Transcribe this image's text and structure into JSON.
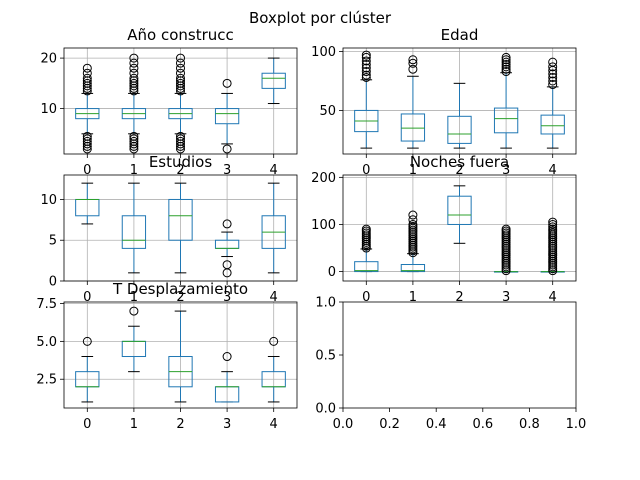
{
  "suptitle": "Boxplot por clúster",
  "chart_data": [
    {
      "type": "boxplot",
      "title": "Año construcc",
      "categories": [
        "0",
        "1",
        "2",
        "3",
        "4"
      ],
      "ylim": [
        1,
        22
      ],
      "yticks": [
        10,
        20
      ],
      "grid": true,
      "boxes": [
        {
          "whislo": 5,
          "q1": 8,
          "median": 9,
          "q3": 10,
          "whishi": 13,
          "fliers": [
            2,
            2.5,
            3,
            3.5,
            4,
            4.5,
            13.5,
            14,
            14.5,
            15,
            15.5,
            16,
            17,
            18
          ]
        },
        {
          "whislo": 5,
          "q1": 8,
          "median": 9,
          "q3": 10,
          "whishi": 13,
          "fliers": [
            2,
            2.5,
            3,
            3.5,
            4,
            4.5,
            13.5,
            14,
            14.5,
            15,
            15.5,
            16,
            17,
            18,
            19,
            20
          ]
        },
        {
          "whislo": 5,
          "q1": 8,
          "median": 9,
          "q3": 10,
          "whishi": 13,
          "fliers": [
            2,
            2.5,
            3,
            3.5,
            4,
            4.5,
            13.5,
            14,
            14.5,
            15,
            15.5,
            16,
            17,
            18,
            19,
            20
          ]
        },
        {
          "whislo": 3,
          "q1": 7,
          "median": 9,
          "q3": 10,
          "whishi": 13,
          "fliers": [
            2,
            15
          ]
        },
        {
          "whislo": 11,
          "q1": 14,
          "median": 16,
          "q3": 17,
          "whishi": 20,
          "fliers": []
        }
      ]
    },
    {
      "type": "boxplot",
      "title": "Edad",
      "categories": [
        "0",
        "1",
        "2",
        "3",
        "4"
      ],
      "ylim": [
        13,
        103
      ],
      "yticks": [
        50,
        100
      ],
      "grid": true,
      "boxes": [
        {
          "whislo": 18,
          "q1": 32,
          "median": 41,
          "q3": 50,
          "whishi": 76,
          "fliers": [
            78,
            80,
            83,
            86,
            89,
            92,
            95,
            97
          ]
        },
        {
          "whislo": 18,
          "q1": 24,
          "median": 35,
          "q3": 47,
          "whishi": 79,
          "fliers": [
            85,
            90,
            93
          ]
        },
        {
          "whislo": 18,
          "q1": 22,
          "median": 30,
          "q3": 45,
          "whishi": 73,
          "fliers": []
        },
        {
          "whislo": 18,
          "q1": 31,
          "median": 43,
          "q3": 52,
          "whishi": 82,
          "fliers": [
            83,
            85,
            87,
            89,
            91,
            93,
            95
          ]
        },
        {
          "whislo": 18,
          "q1": 30,
          "median": 37,
          "q3": 46,
          "whishi": 70,
          "fliers": [
            72,
            75,
            78,
            81,
            84,
            87,
            91
          ]
        }
      ]
    },
    {
      "type": "boxplot",
      "title": "Estudios",
      "categories": [
        "0",
        "1",
        "2",
        "3",
        "4"
      ],
      "ylim": [
        0,
        13
      ],
      "yticks": [
        0,
        5,
        10
      ],
      "grid": true,
      "boxes": [
        {
          "whislo": 7,
          "q1": 8,
          "median": 10,
          "q3": 10,
          "whishi": 12,
          "fliers": []
        },
        {
          "whislo": 1,
          "q1": 4,
          "median": 5,
          "q3": 8,
          "whishi": 12,
          "fliers": []
        },
        {
          "whislo": 1,
          "q1": 5,
          "median": 8,
          "q3": 10,
          "whishi": 12,
          "fliers": []
        },
        {
          "whislo": 3,
          "q1": 4,
          "median": 4,
          "q3": 5,
          "whishi": 6,
          "fliers": [
            1,
            2,
            7
          ]
        },
        {
          "whislo": 1,
          "q1": 4,
          "median": 6,
          "q3": 8,
          "whishi": 12,
          "fliers": []
        }
      ]
    },
    {
      "type": "boxplot",
      "title": "Noches fuera",
      "categories": [
        "0",
        "1",
        "2",
        "3",
        "4"
      ],
      "ylim": [
        -20,
        205
      ],
      "yticks": [
        0,
        100,
        200
      ],
      "grid": true,
      "boxes": [
        {
          "whislo": 0,
          "q1": 0,
          "median": 2,
          "q3": 21,
          "whishi": 48,
          "fliers": [
            50,
            54,
            58,
            62,
            66,
            70,
            74,
            78,
            82,
            86,
            90
          ]
        },
        {
          "whislo": 0,
          "q1": 0,
          "median": 2,
          "q3": 15,
          "whishi": 38,
          "fliers": [
            40,
            44,
            48,
            52,
            56,
            60,
            64,
            68,
            72,
            76,
            80,
            84,
            88,
            92,
            96,
            100,
            110,
            120
          ]
        },
        {
          "whislo": 60,
          "q1": 100,
          "median": 120,
          "q3": 160,
          "whishi": 182,
          "fliers": []
        },
        {
          "whislo": 0,
          "q1": 0,
          "median": 0,
          "q3": 0,
          "whishi": 0,
          "fliers": [
            2,
            6,
            10,
            14,
            18,
            22,
            26,
            30,
            34,
            38,
            42,
            46,
            50,
            54,
            58,
            62,
            66,
            70,
            74,
            78,
            82,
            86,
            90
          ]
        },
        {
          "whislo": 0,
          "q1": 0,
          "median": 0,
          "q3": 0,
          "whishi": 0,
          "fliers": [
            2,
            6,
            10,
            14,
            18,
            22,
            26,
            30,
            34,
            38,
            42,
            46,
            50,
            54,
            58,
            62,
            66,
            70,
            74,
            78,
            82,
            86,
            90,
            95,
            100,
            105
          ]
        }
      ]
    },
    {
      "type": "boxplot",
      "title": "T Desplazamiento",
      "categories": [
        "0",
        "1",
        "2",
        "3",
        "4"
      ],
      "ylim": [
        0.6,
        7.6
      ],
      "yticks": [
        2.5,
        5.0,
        7.5
      ],
      "ytick_labels": [
        "2.5",
        "5.0",
        "7.5"
      ],
      "grid": true,
      "boxes": [
        {
          "whislo": 1,
          "q1": 2,
          "median": 2,
          "q3": 3,
          "whishi": 4,
          "fliers": [
            5
          ]
        },
        {
          "whislo": 3,
          "q1": 4,
          "median": 5,
          "q3": 5,
          "whishi": 6,
          "fliers": [
            7
          ]
        },
        {
          "whislo": 1,
          "q1": 2,
          "median": 3,
          "q3": 4,
          "whishi": 7,
          "fliers": []
        },
        {
          "whislo": 1,
          "q1": 1,
          "median": 2,
          "q3": 2,
          "whishi": 3,
          "fliers": [
            4
          ]
        },
        {
          "whislo": 1,
          "q1": 2,
          "median": 2,
          "q3": 3,
          "whishi": 4,
          "fliers": [
            5
          ]
        }
      ]
    },
    {
      "type": "empty",
      "title": "",
      "xlim": [
        0,
        1
      ],
      "ylim": [
        0,
        1
      ],
      "xticks": [
        0,
        0.2,
        0.4,
        0.6,
        0.8,
        1.0
      ],
      "xtick_labels": [
        "0.0",
        "0.2",
        "0.4",
        "0.6",
        "0.8",
        "1.0"
      ],
      "yticks": [
        0,
        0.5,
        1.0
      ],
      "ytick_labels": [
        "0.0",
        "0.5",
        "1.0"
      ],
      "grid": false
    }
  ]
}
